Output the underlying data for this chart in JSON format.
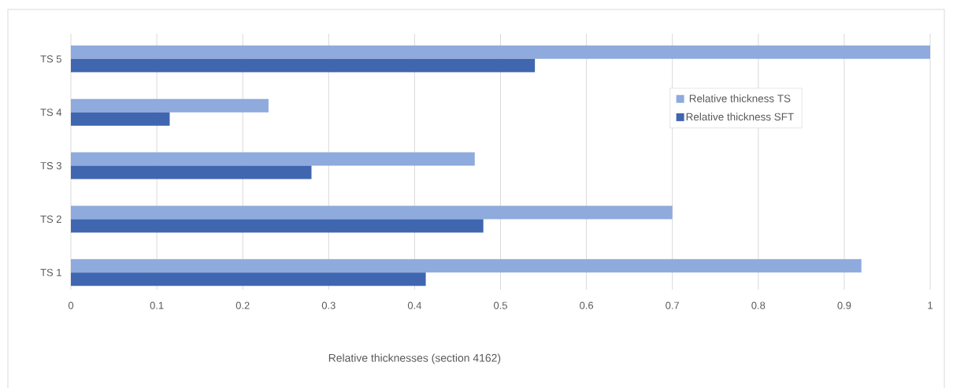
{
  "chart_data": {
    "type": "bar",
    "orientation": "horizontal",
    "xlabel": "Relative thicknesses (section 4162)",
    "categories": [
      "TS 5",
      "TS 4",
      "TS 3",
      "TS 2",
      "TS 1"
    ],
    "series": [
      {
        "name": "Relative thickness TS",
        "color": "#8faadc",
        "values": [
          1.0,
          0.23,
          0.47,
          0.7,
          0.92
        ]
      },
      {
        "name": "Relative thickness SFT",
        "color": "#4066b0",
        "values": [
          0.54,
          0.115,
          0.28,
          0.48,
          0.413
        ]
      }
    ],
    "xlim": [
      0,
      1
    ],
    "xticks": [
      0,
      0.1,
      0.2,
      0.3,
      0.4,
      0.5,
      0.6,
      0.7,
      0.8,
      0.9,
      1
    ],
    "grid": "x",
    "legend": "right"
  }
}
